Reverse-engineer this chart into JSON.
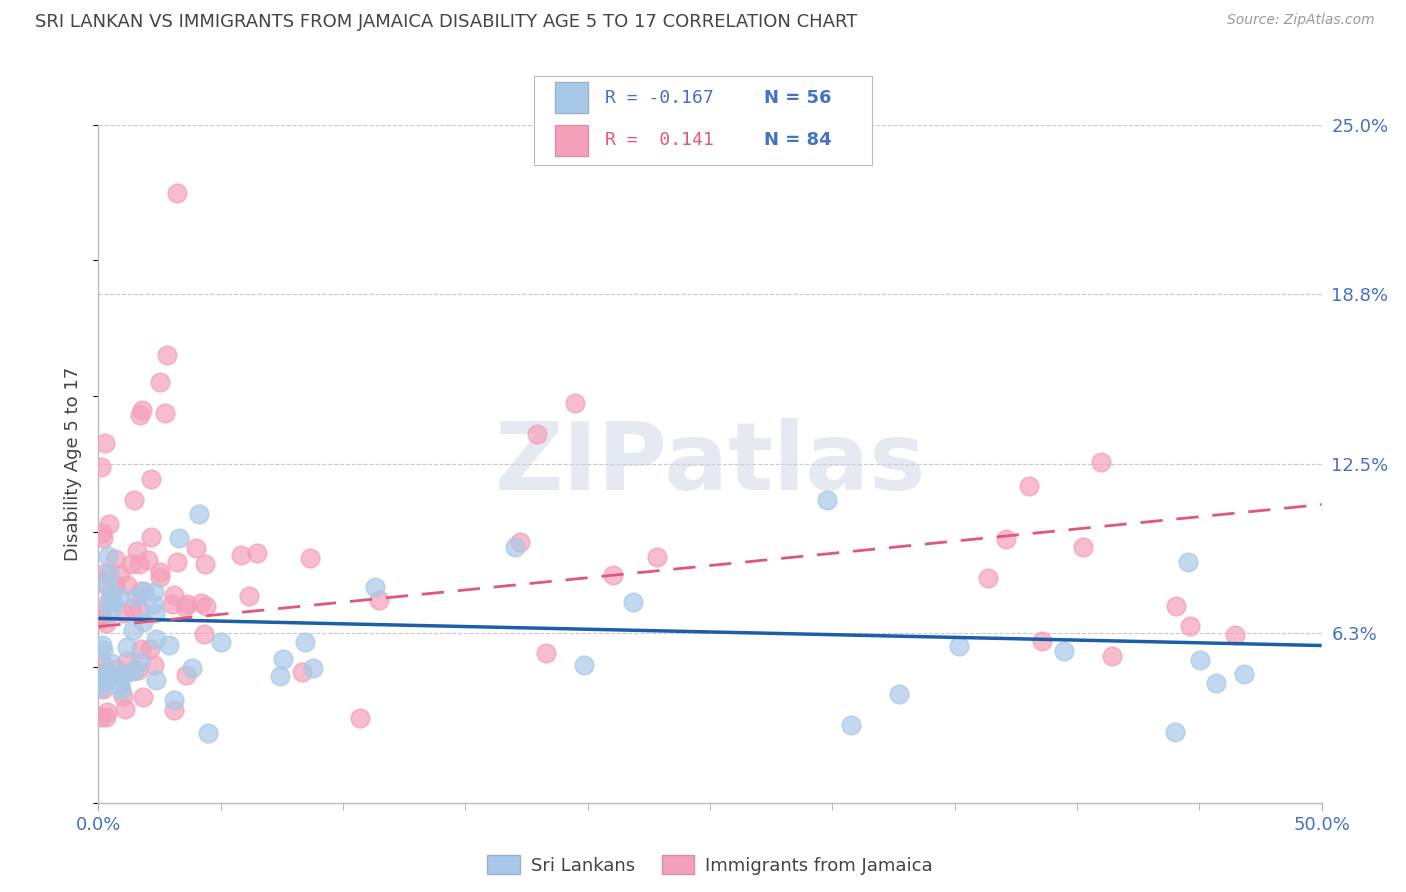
{
  "title": "SRI LANKAN VS IMMIGRANTS FROM JAMAICA DISABILITY AGE 5 TO 17 CORRELATION CHART",
  "source": "Source: ZipAtlas.com",
  "ylabel": "Disability Age 5 to 17",
  "xlim": [
    0.0,
    50.0
  ],
  "ylim": [
    0.0,
    25.0
  ],
  "ytick_vals": [
    6.25,
    12.5,
    18.75,
    25.0
  ],
  "ytick_labels": [
    "6.3%",
    "12.5%",
    "18.8%",
    "25.0%"
  ],
  "xtick_vals": [
    0.0,
    50.0
  ],
  "xtick_labels": [
    "0.0%",
    "50.0%"
  ],
  "minor_xticks": [
    5,
    10,
    15,
    20,
    25,
    30,
    35,
    40,
    45
  ],
  "watermark": "ZIPatlas",
  "legend1_r": "R = -0.167",
  "legend1_n": "N = 56",
  "legend2_r": "R =  0.141",
  "legend2_n": "N = 84",
  "sri_lanka_color": "#a8c8e8",
  "jamaica_color": "#f4a0b8",
  "sri_lanka_line_color": "#1a5fa8",
  "jamaica_line_color": "#e05878",
  "background_color": "#ffffff",
  "grid_color": "#c8c8d0",
  "title_color": "#444444",
  "axis_label_color": "#4472c4",
  "legend_r_color": "#4472c4",
  "legend_n_color": "#4472c4",
  "legend2_r_color": "#e05878",
  "legend2_n_color": "#4472c4",
  "sl_line_y0": 6.8,
  "sl_line_y1": 5.8,
  "jm_line_y0": 6.5,
  "jm_line_y1": 11.0
}
